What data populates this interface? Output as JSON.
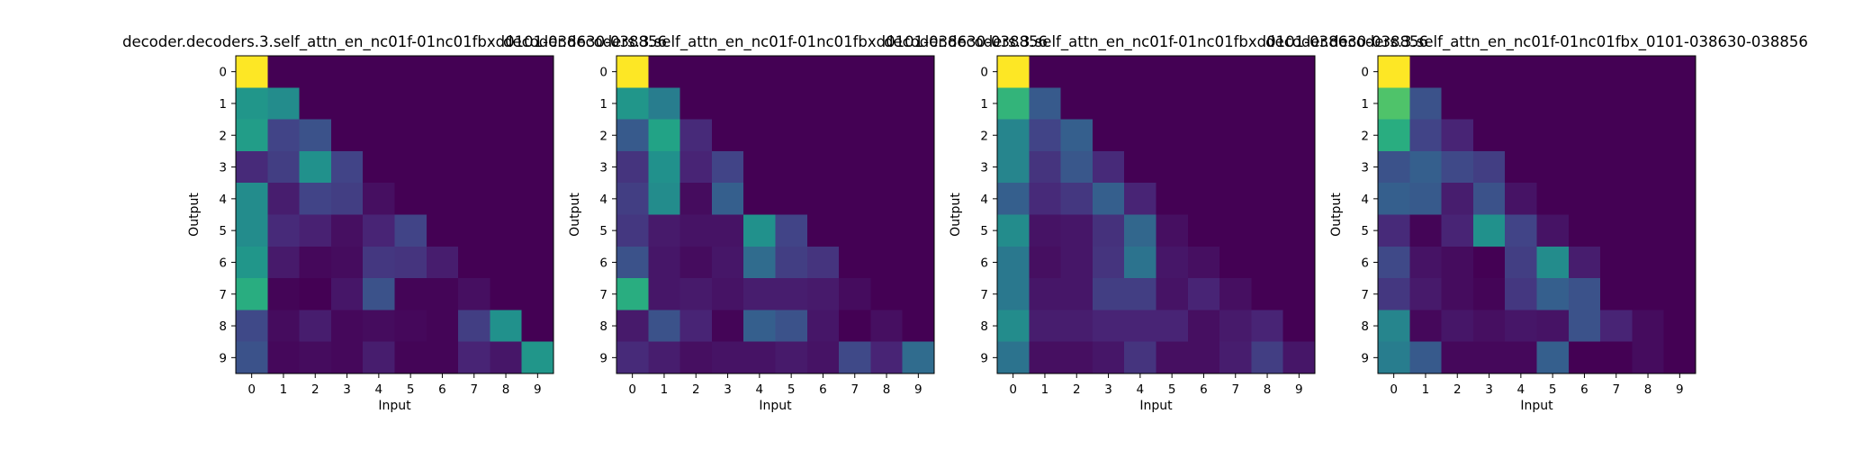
{
  "colormap": "viridis",
  "chart_data": [
    {
      "type": "heatmap",
      "title": "decoder.decoders.3.self_attn_en_nc01f-01nc01fbxd0101-038630-038856",
      "xlabel": "Input",
      "ylabel": "Output",
      "x_ticks": [
        "0",
        "1",
        "2",
        "3",
        "4",
        "5",
        "6",
        "7",
        "8",
        "9"
      ],
      "y_ticks": [
        "0",
        "1",
        "2",
        "3",
        "4",
        "5",
        "6",
        "7",
        "8",
        "9"
      ],
      "vmin": 0,
      "vmax": 1,
      "values": [
        [
          1.0,
          0.0,
          0.0,
          0.0,
          0.0,
          0.0,
          0.0,
          0.0,
          0.0,
          0.0
        ],
        [
          0.52,
          0.48,
          0.0,
          0.0,
          0.0,
          0.0,
          0.0,
          0.0,
          0.0,
          0.0
        ],
        [
          0.55,
          0.2,
          0.25,
          0.0,
          0.0,
          0.0,
          0.0,
          0.0,
          0.0,
          0.0
        ],
        [
          0.12,
          0.18,
          0.5,
          0.2,
          0.0,
          0.0,
          0.0,
          0.0,
          0.0,
          0.0
        ],
        [
          0.48,
          0.08,
          0.2,
          0.18,
          0.04,
          0.0,
          0.0,
          0.0,
          0.0,
          0.0
        ],
        [
          0.48,
          0.12,
          0.09,
          0.04,
          0.1,
          0.2,
          0.0,
          0.0,
          0.0,
          0.0
        ],
        [
          0.52,
          0.07,
          0.02,
          0.03,
          0.16,
          0.15,
          0.08,
          0.0,
          0.0,
          0.0
        ],
        [
          0.62,
          0.01,
          0.0,
          0.06,
          0.25,
          0.01,
          0.01,
          0.04,
          0.0,
          0.0
        ],
        [
          0.22,
          0.03,
          0.08,
          0.02,
          0.03,
          0.02,
          0.01,
          0.18,
          0.5,
          0.0
        ],
        [
          0.25,
          0.02,
          0.03,
          0.02,
          0.08,
          0.01,
          0.01,
          0.1,
          0.06,
          0.52
        ]
      ]
    },
    {
      "type": "heatmap",
      "title": "decoder.decoders.3.self_attn_en_nc01f-01nc01fbxd0101-038630-038856",
      "xlabel": "Input",
      "ylabel": "Output",
      "x_ticks": [
        "0",
        "1",
        "2",
        "3",
        "4",
        "5",
        "6",
        "7",
        "8",
        "9"
      ],
      "y_ticks": [
        "0",
        "1",
        "2",
        "3",
        "4",
        "5",
        "6",
        "7",
        "8",
        "9"
      ],
      "vmin": 0,
      "vmax": 1,
      "values": [
        [
          1.0,
          0.0,
          0.0,
          0.0,
          0.0,
          0.0,
          0.0,
          0.0,
          0.0,
          0.0
        ],
        [
          0.52,
          0.42,
          0.0,
          0.0,
          0.0,
          0.0,
          0.0,
          0.0,
          0.0,
          0.0
        ],
        [
          0.28,
          0.58,
          0.12,
          0.0,
          0.0,
          0.0,
          0.0,
          0.0,
          0.0,
          0.0
        ],
        [
          0.15,
          0.5,
          0.1,
          0.2,
          0.0,
          0.0,
          0.0,
          0.0,
          0.0,
          0.0
        ],
        [
          0.18,
          0.48,
          0.03,
          0.3,
          0.0,
          0.0,
          0.0,
          0.0,
          0.0,
          0.0
        ],
        [
          0.16,
          0.07,
          0.05,
          0.05,
          0.5,
          0.2,
          0.0,
          0.0,
          0.0,
          0.0
        ],
        [
          0.25,
          0.06,
          0.03,
          0.06,
          0.35,
          0.18,
          0.15,
          0.0,
          0.0,
          0.0
        ],
        [
          0.62,
          0.06,
          0.07,
          0.05,
          0.08,
          0.08,
          0.07,
          0.03,
          0.0,
          0.0
        ],
        [
          0.07,
          0.25,
          0.1,
          0.01,
          0.3,
          0.25,
          0.06,
          0.0,
          0.04,
          0.0
        ],
        [
          0.12,
          0.08,
          0.04,
          0.05,
          0.05,
          0.07,
          0.05,
          0.22,
          0.1,
          0.35
        ]
      ]
    },
    {
      "type": "heatmap",
      "title": "decoder.decoders.3.self_attn_en_nc01f-01nc01fbxd0101-038630-038856",
      "xlabel": "Input",
      "ylabel": "Output",
      "x_ticks": [
        "0",
        "1",
        "2",
        "3",
        "4",
        "5",
        "6",
        "7",
        "8",
        "9"
      ],
      "y_ticks": [
        "0",
        "1",
        "2",
        "3",
        "4",
        "5",
        "6",
        "7",
        "8",
        "9"
      ],
      "vmin": 0,
      "vmax": 1,
      "values": [
        [
          1.0,
          0.0,
          0.0,
          0.0,
          0.0,
          0.0,
          0.0,
          0.0,
          0.0,
          0.0
        ],
        [
          0.65,
          0.28,
          0.0,
          0.0,
          0.0,
          0.0,
          0.0,
          0.0,
          0.0,
          0.0
        ],
        [
          0.45,
          0.2,
          0.3,
          0.0,
          0.0,
          0.0,
          0.0,
          0.0,
          0.0,
          0.0
        ],
        [
          0.45,
          0.15,
          0.27,
          0.12,
          0.0,
          0.0,
          0.0,
          0.0,
          0.0,
          0.0
        ],
        [
          0.3,
          0.12,
          0.16,
          0.3,
          0.1,
          0.0,
          0.0,
          0.0,
          0.0,
          0.0
        ],
        [
          0.48,
          0.05,
          0.06,
          0.14,
          0.33,
          0.04,
          0.0,
          0.0,
          0.0,
          0.0
        ],
        [
          0.4,
          0.04,
          0.06,
          0.15,
          0.38,
          0.06,
          0.04,
          0.0,
          0.0,
          0.0
        ],
        [
          0.4,
          0.06,
          0.06,
          0.18,
          0.18,
          0.05,
          0.1,
          0.04,
          0.0,
          0.0
        ],
        [
          0.48,
          0.08,
          0.08,
          0.1,
          0.1,
          0.1,
          0.04,
          0.07,
          0.1,
          0.0
        ],
        [
          0.38,
          0.04,
          0.04,
          0.06,
          0.15,
          0.04,
          0.04,
          0.08,
          0.18,
          0.06
        ]
      ]
    },
    {
      "type": "heatmap",
      "title": "decoder.decoders.3.self_attn_en_nc01f-01nc01fbx_0101-038630-038856",
      "xlabel": "Input",
      "ylabel": "Output",
      "x_ticks": [
        "0",
        "1",
        "2",
        "3",
        "4",
        "5",
        "6",
        "7",
        "8",
        "9"
      ],
      "y_ticks": [
        "0",
        "1",
        "2",
        "3",
        "4",
        "5",
        "6",
        "7",
        "8",
        "9"
      ],
      "vmin": 0,
      "vmax": 1,
      "values": [
        [
          1.0,
          0.0,
          0.0,
          0.0,
          0.0,
          0.0,
          0.0,
          0.0,
          0.0,
          0.0
        ],
        [
          0.72,
          0.25,
          0.0,
          0.0,
          0.0,
          0.0,
          0.0,
          0.0,
          0.0,
          0.0
        ],
        [
          0.62,
          0.2,
          0.1,
          0.0,
          0.0,
          0.0,
          0.0,
          0.0,
          0.0,
          0.0
        ],
        [
          0.25,
          0.3,
          0.22,
          0.18,
          0.0,
          0.0,
          0.0,
          0.0,
          0.0,
          0.0
        ],
        [
          0.3,
          0.28,
          0.08,
          0.25,
          0.05,
          0.0,
          0.0,
          0.0,
          0.0,
          0.0
        ],
        [
          0.12,
          0.01,
          0.1,
          0.5,
          0.2,
          0.05,
          0.0,
          0.0,
          0.0,
          0.0
        ],
        [
          0.22,
          0.05,
          0.03,
          0.0,
          0.18,
          0.48,
          0.08,
          0.0,
          0.0,
          0.0
        ],
        [
          0.16,
          0.07,
          0.03,
          0.01,
          0.16,
          0.3,
          0.25,
          0.0,
          0.0,
          0.0
        ],
        [
          0.45,
          0.02,
          0.06,
          0.04,
          0.06,
          0.05,
          0.25,
          0.1,
          0.03,
          0.0
        ],
        [
          0.42,
          0.28,
          0.02,
          0.02,
          0.02,
          0.3,
          0.0,
          0.0,
          0.03,
          0.0
        ]
      ]
    }
  ]
}
